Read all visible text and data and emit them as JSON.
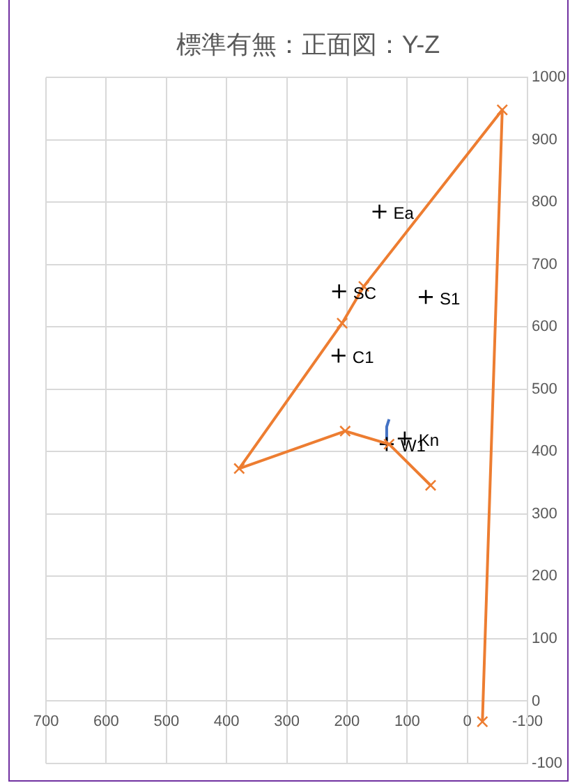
{
  "chart_data": {
    "type": "scatter",
    "title": "標準有無：正面図：Y-Z",
    "series": [
      {
        "type": "line",
        "color": "#ed7d31",
        "marker": "cross",
        "x": [
          61,
          130,
          203,
          379,
          208,
          172,
          -58,
          -25
        ],
        "values": [
          346,
          412,
          433,
          373,
          606,
          665,
          948,
          -33
        ]
      },
      {
        "type": "scatter",
        "color": "#000000",
        "marker": "plus",
        "x": [
          146,
          213,
          69,
          214,
          134,
          104
        ],
        "values": [
          785,
          657,
          648,
          554,
          412,
          421
        ]
      },
      {
        "type": "line",
        "color": "#4472c4",
        "marker": "none",
        "x": [
          130,
          134,
          135,
          133
        ],
        "values": [
          452,
          440,
          425,
          418
        ]
      }
    ],
    "annotations": [
      {
        "text": "Ea",
        "x": 146,
        "y": 785
      },
      {
        "text": "SC",
        "x": 213,
        "y": 657
      },
      {
        "text": "S1",
        "x": 69,
        "y": 648
      },
      {
        "text": "C1",
        "x": 214,
        "y": 554
      },
      {
        "text": "W1",
        "x": 134,
        "y": 412
      },
      {
        "text": "Kn",
        "x": 104,
        "y": 421
      }
    ],
    "xlim": [
      700,
      -100
    ],
    "xticks": [
      700,
      600,
      500,
      400,
      300,
      200,
      100,
      0,
      -100
    ],
    "ylim": [
      -100,
      1000
    ],
    "yticks": [
      -100,
      0,
      100,
      200,
      300,
      400,
      500,
      600,
      700,
      800,
      900,
      1000
    ],
    "grid": true,
    "legend": false
  }
}
